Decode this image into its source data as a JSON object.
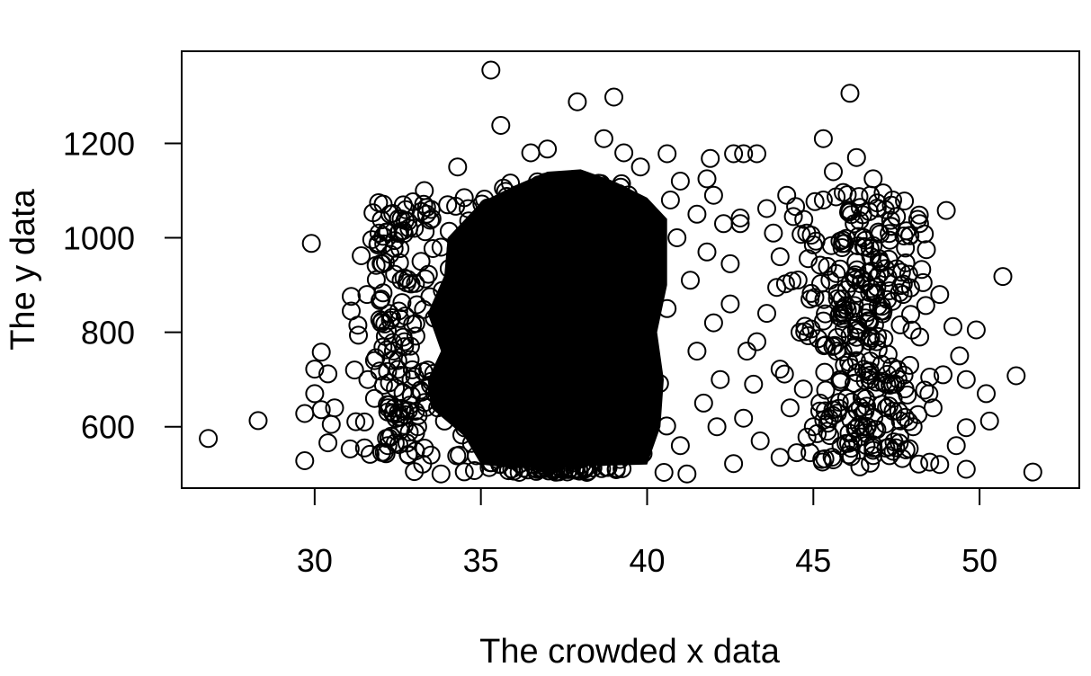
{
  "chart_data": {
    "type": "scatter",
    "title": "",
    "xlabel": "The crowded x data",
    "ylabel": "The y data",
    "xlim": [
      26,
      53
    ],
    "ylim": [
      470,
      1395
    ],
    "xticks": [
      30,
      35,
      40,
      45,
      50
    ],
    "yticks": [
      600,
      800,
      1000,
      1200
    ],
    "grid": false,
    "legend": "none",
    "marker": "open-circle",
    "colors": {
      "stroke": "#000000",
      "background": "#ffffff"
    },
    "series": [
      {
        "points": [
          [
            26.8,
            575
          ],
          [
            28.3,
            613
          ],
          [
            29.7,
            628
          ],
          [
            29.7,
            528
          ],
          [
            29.9,
            988
          ],
          [
            30.0,
            722
          ],
          [
            30.0,
            670
          ],
          [
            30.2,
            758
          ],
          [
            30.2,
            636
          ],
          [
            30.4,
            712
          ],
          [
            30.4,
            566
          ],
          [
            30.5,
            605
          ],
          [
            30.6,
            640
          ],
          [
            31.1,
            876
          ],
          [
            31.1,
            845
          ],
          [
            31.3,
            815
          ],
          [
            31.4,
            962
          ],
          [
            31.2,
            720
          ],
          [
            31.6,
            700
          ],
          [
            31.5,
            555
          ],
          [
            31.8,
            660
          ],
          [
            31.9,
            985
          ],
          [
            32.0,
            820
          ],
          [
            32.2,
            1012
          ],
          [
            32.3,
            580
          ],
          [
            32.5,
            740
          ],
          [
            32.6,
            1040
          ],
          [
            32.8,
            912
          ],
          [
            33.0,
            505
          ],
          [
            33.3,
            1100
          ],
          [
            33.5,
            540
          ],
          [
            33.5,
            1060
          ],
          [
            33.8,
            500
          ],
          [
            34.0,
            1070
          ],
          [
            34.3,
            1150
          ],
          [
            34.5,
            1085
          ],
          [
            35.3,
            1355
          ],
          [
            35.6,
            1238
          ],
          [
            36.5,
            1180
          ],
          [
            37.0,
            1188
          ],
          [
            37.9,
            1288
          ],
          [
            38.7,
            1210
          ],
          [
            39.0,
            1298
          ],
          [
            39.3,
            1180
          ],
          [
            39.8,
            1150
          ],
          [
            40.6,
            1178
          ],
          [
            41.0,
            1120
          ],
          [
            41.9,
            1168
          ],
          [
            41.8,
            1125
          ],
          [
            42.0,
            1090
          ],
          [
            42.6,
            1178
          ],
          [
            42.8,
            1042
          ],
          [
            42.8,
            1030
          ],
          [
            42.9,
            1178
          ],
          [
            43.3,
            1178
          ],
          [
            42.5,
            945
          ],
          [
            42.5,
            860
          ],
          [
            43.0,
            760
          ],
          [
            42.9,
            618
          ],
          [
            43.4,
            570
          ],
          [
            42.6,
            522
          ],
          [
            43.6,
            1062
          ],
          [
            44.0,
            535
          ],
          [
            44.5,
            545
          ],
          [
            44.9,
            545
          ],
          [
            45.3,
            1210
          ],
          [
            45.6,
            1140
          ],
          [
            46.1,
            1306
          ],
          [
            46.3,
            1170
          ],
          [
            46.8,
            1125
          ],
          [
            47.1,
            1095
          ],
          [
            47.5,
            1045
          ],
          [
            47.3,
            995
          ],
          [
            47.9,
            1005
          ],
          [
            48.4,
            975
          ],
          [
            49.0,
            1058
          ],
          [
            48.8,
            880
          ],
          [
            49.2,
            812
          ],
          [
            49.4,
            750
          ],
          [
            49.6,
            700
          ],
          [
            49.9,
            805
          ],
          [
            49.6,
            598
          ],
          [
            49.6,
            510
          ],
          [
            50.2,
            670
          ],
          [
            50.3,
            612
          ],
          [
            50.7,
            918
          ],
          [
            51.1,
            708
          ],
          [
            51.6,
            504
          ],
          [
            48.5,
            705
          ],
          [
            48.6,
            640
          ],
          [
            48.8,
            520
          ],
          [
            48.5,
            525
          ],
          [
            47.6,
            580
          ],
          [
            47.4,
            548
          ],
          [
            47.2,
            640
          ],
          [
            46.7,
            718
          ],
          [
            46.4,
            515
          ],
          [
            46.2,
            568
          ],
          [
            45.6,
            530
          ],
          [
            45.8,
            840
          ],
          [
            45.5,
            910
          ],
          [
            45.0,
            985
          ],
          [
            44.8,
            1010
          ],
          [
            44.4,
            1045
          ],
          [
            44.2,
            1090
          ],
          [
            43.9,
            895
          ],
          [
            43.6,
            840
          ],
          [
            43.3,
            780
          ],
          [
            43.2,
            690
          ],
          [
            44.0,
            722
          ],
          [
            44.3,
            640
          ],
          [
            44.7,
            680
          ],
          [
            45.2,
            650
          ],
          [
            46.0,
            660
          ],
          [
            46.5,
            600
          ],
          [
            46.9,
            780
          ],
          [
            47.7,
            880
          ],
          [
            48.2,
            790
          ],
          [
            47.9,
            730
          ],
          [
            45.3,
            1080
          ],
          [
            46.5,
            1000
          ],
          [
            47.0,
            950
          ],
          [
            45.8,
            700
          ],
          [
            44.6,
            800
          ],
          [
            46.0,
            890
          ],
          [
            47.4,
            660
          ],
          [
            48.0,
            600
          ],
          [
            44.0,
            960
          ],
          [
            45.0,
            600
          ],
          [
            46.3,
            740
          ],
          [
            47.1,
            845
          ],
          [
            48.9,
            710
          ],
          [
            49.3,
            560
          ],
          [
            46.8,
            550
          ],
          [
            45.7,
            760
          ],
          [
            43.8,
            1010
          ],
          [
            44.9,
            870
          ],
          [
            47.8,
            1015
          ],
          [
            46.1,
            1055
          ],
          [
            48.3,
            905
          ],
          [
            41.0,
            560
          ],
          [
            41.3,
            910
          ],
          [
            41.5,
            760
          ],
          [
            41.7,
            650
          ],
          [
            42.0,
            820
          ],
          [
            42.2,
            700
          ],
          [
            41.2,
            500
          ],
          [
            42.3,
            1030
          ],
          [
            40.9,
            1000
          ],
          [
            41.8,
            970
          ],
          [
            40.7,
            1080
          ],
          [
            41.5,
            1050
          ],
          [
            42.1,
            600
          ],
          [
            40.6,
            850
          ],
          [
            32.0,
            870
          ],
          [
            32.4,
            640
          ],
          [
            32.9,
            700
          ],
          [
            33.1,
            600
          ],
          [
            33.2,
            950
          ],
          [
            32.7,
            780
          ],
          [
            33.6,
            830
          ],
          [
            33.8,
            980
          ],
          [
            32.2,
            560
          ],
          [
            33.0,
            1020
          ],
          [
            31.8,
            740
          ],
          [
            32.6,
            910
          ],
          [
            31.5,
            610
          ],
          [
            33.4,
            720
          ],
          [
            33.7,
            640
          ]
        ]
      }
    ]
  }
}
